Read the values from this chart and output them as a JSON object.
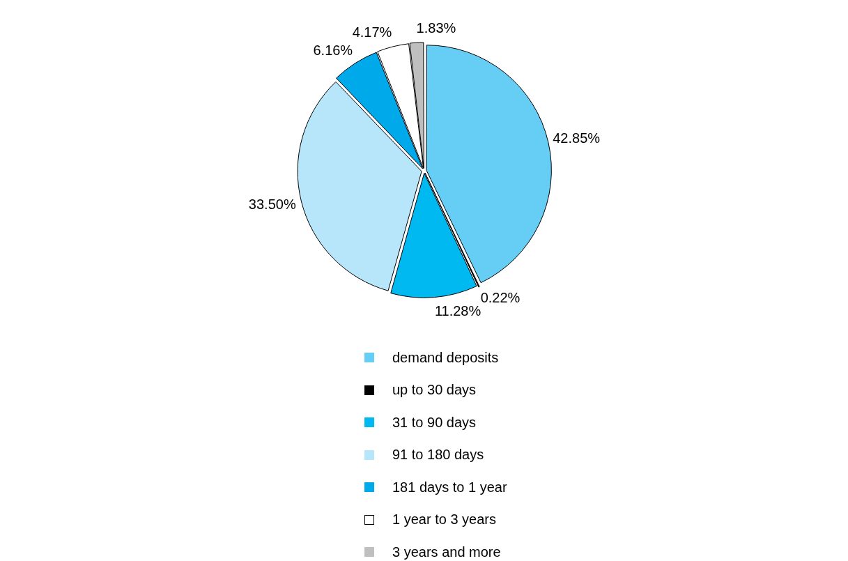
{
  "chart_data": {
    "type": "pie",
    "categories": [
      "demand deposits",
      "up to 30 days",
      "31 to 90 days",
      "91 to 180 days",
      "181 days to 1 year",
      "1 year to 3 years",
      "3 years and more"
    ],
    "values": [
      42.85,
      0.22,
      11.28,
      33.5,
      6.16,
      4.17,
      1.83
    ],
    "value_labels": [
      "42.85%",
      "0.22%",
      "11.28%",
      "33.50%",
      "6.16%",
      "4.17%",
      "1.83%"
    ],
    "colors": [
      "#66cdf5",
      "#000000",
      "#00b9f1",
      "#b7e5f9",
      "#00a9e9",
      "#ffffff",
      "#bfbfbf"
    ],
    "legend": "bottom"
  }
}
